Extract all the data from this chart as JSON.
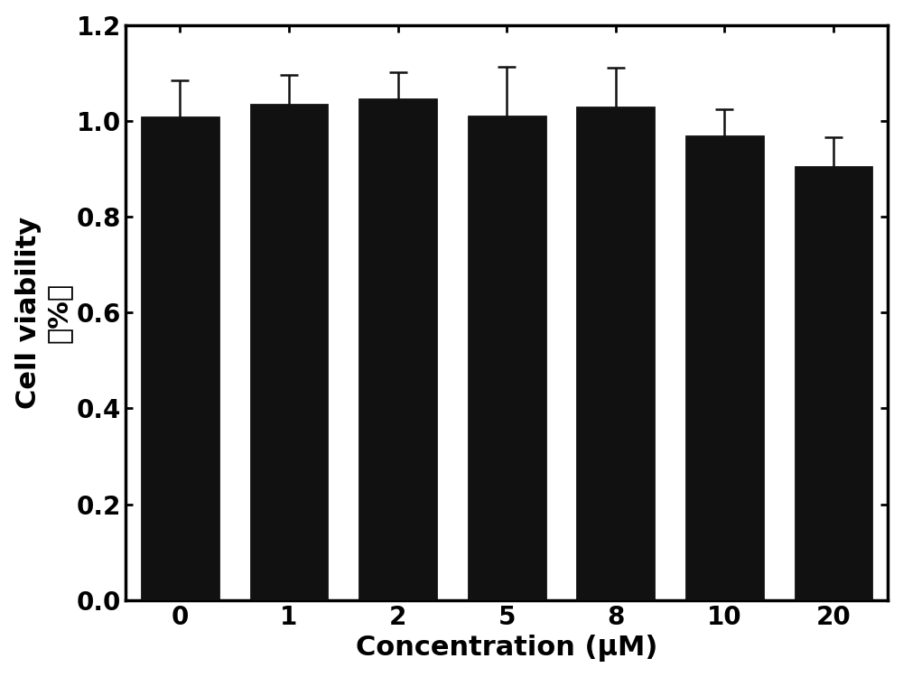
{
  "categories": [
    "0",
    "1",
    "2",
    "5",
    "8",
    "10",
    "20"
  ],
  "values": [
    1.01,
    1.035,
    1.047,
    1.012,
    1.03,
    0.97,
    0.905
  ],
  "errors": [
    0.075,
    0.06,
    0.055,
    0.1,
    0.08,
    0.055,
    0.06
  ],
  "bar_color": "#111111",
  "error_color": "#111111",
  "xlabel": "Concentration (μM)",
  "ylabel": "Cell viability （%）",
  "ylim": [
    0.0,
    1.2
  ],
  "yticks": [
    0.0,
    0.2,
    0.4,
    0.6,
    0.8,
    1.0,
    1.2
  ],
  "background_color": "#ffffff",
  "xlabel_fontsize": 22,
  "ylabel_fontsize": 22,
  "tick_fontsize": 20,
  "bar_width": 0.72,
  "edge_color": "#000000",
  "spine_linewidth": 2.5
}
